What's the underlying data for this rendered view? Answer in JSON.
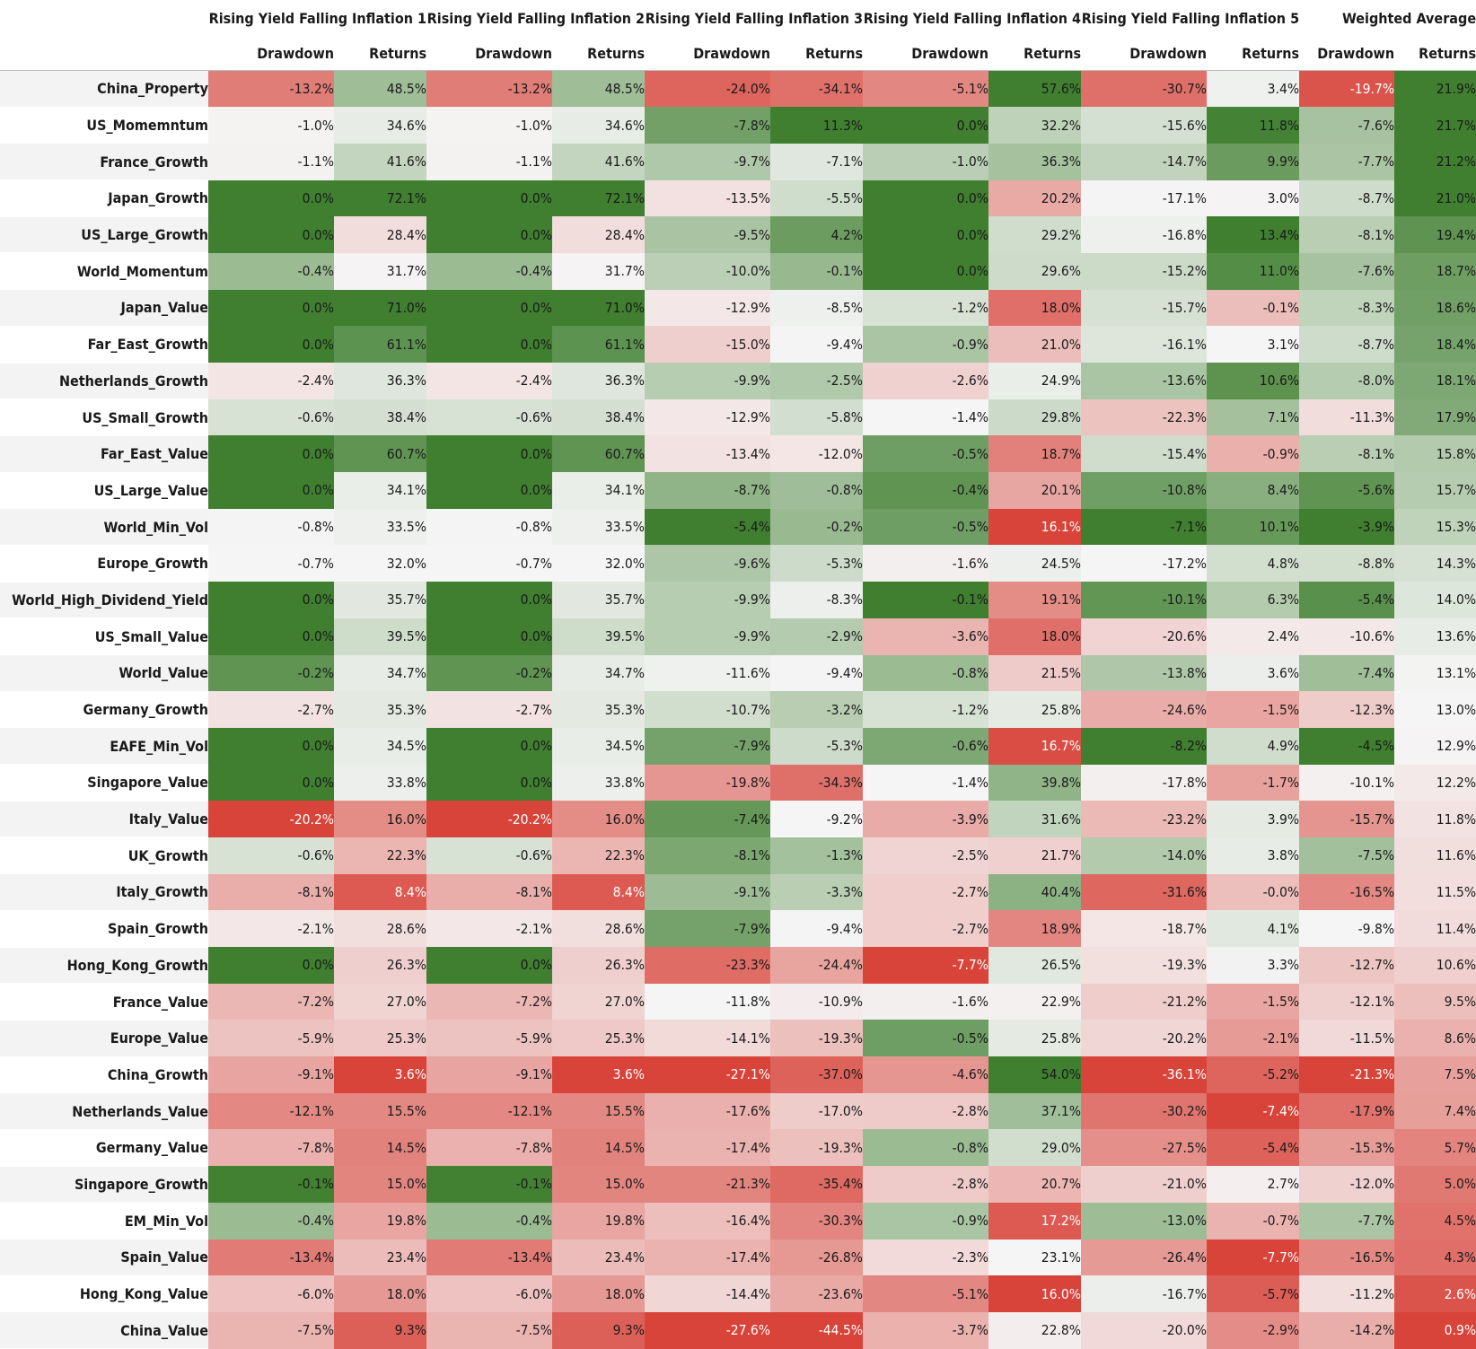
{
  "chart_data": {
    "type": "heatmap",
    "group_headers": [
      "Rising Yield Falling Inflation 1",
      "Rising Yield Falling Inflation 2",
      "Rising Yield Falling Inflation 3",
      "Rising Yield Falling Inflation 4",
      "Rising Yield Falling Inflation 5",
      "Weighted Average"
    ],
    "sub_headers": [
      "Drawdown",
      "Returns"
    ],
    "color_scale": {
      "low": "#d8433a",
      "mid": "#f5f5f5",
      "high": "#3f7f2f"
    },
    "rows": [
      {
        "label": "China_Property",
        "values": [
          "-13.2%",
          "48.5%",
          "-13.2%",
          "48.5%",
          "-24.0%",
          "-34.1%",
          "-5.1%",
          "57.6%",
          "-30.7%",
          "3.4%",
          "-19.7%",
          "21.9%"
        ]
      },
      {
        "label": "US_Momemntum",
        "values": [
          "-1.0%",
          "34.6%",
          "-1.0%",
          "34.6%",
          "-7.8%",
          "11.3%",
          "0.0%",
          "32.2%",
          "-15.6%",
          "11.8%",
          "-7.6%",
          "21.7%"
        ]
      },
      {
        "label": "France_Growth",
        "values": [
          "-1.1%",
          "41.6%",
          "-1.1%",
          "41.6%",
          "-9.7%",
          "-7.1%",
          "-1.0%",
          "36.3%",
          "-14.7%",
          "9.9%",
          "-7.7%",
          "21.2%"
        ]
      },
      {
        "label": "Japan_Growth",
        "values": [
          "0.0%",
          "72.1%",
          "0.0%",
          "72.1%",
          "-13.5%",
          "-5.5%",
          "0.0%",
          "20.2%",
          "-17.1%",
          "3.0%",
          "-8.7%",
          "21.0%"
        ]
      },
      {
        "label": "US_Large_Growth",
        "values": [
          "0.0%",
          "28.4%",
          "0.0%",
          "28.4%",
          "-9.5%",
          "4.2%",
          "0.0%",
          "29.2%",
          "-16.8%",
          "13.4%",
          "-8.1%",
          "19.4%"
        ]
      },
      {
        "label": "World_Momentum",
        "values": [
          "-0.4%",
          "31.7%",
          "-0.4%",
          "31.7%",
          "-10.0%",
          "-0.1%",
          "0.0%",
          "29.6%",
          "-15.2%",
          "11.0%",
          "-7.6%",
          "18.7%"
        ]
      },
      {
        "label": "Japan_Value",
        "values": [
          "0.0%",
          "71.0%",
          "0.0%",
          "71.0%",
          "-12.9%",
          "-8.5%",
          "-1.2%",
          "18.0%",
          "-15.7%",
          "-0.1%",
          "-8.3%",
          "18.6%"
        ]
      },
      {
        "label": "Far_East_Growth",
        "values": [
          "0.0%",
          "61.1%",
          "0.0%",
          "61.1%",
          "-15.0%",
          "-9.4%",
          "-0.9%",
          "21.0%",
          "-16.1%",
          "3.1%",
          "-8.7%",
          "18.4%"
        ]
      },
      {
        "label": "Netherlands_Growth",
        "values": [
          "-2.4%",
          "36.3%",
          "-2.4%",
          "36.3%",
          "-9.9%",
          "-2.5%",
          "-2.6%",
          "24.9%",
          "-13.6%",
          "10.6%",
          "-8.0%",
          "18.1%"
        ]
      },
      {
        "label": "US_Small_Growth",
        "values": [
          "-0.6%",
          "38.4%",
          "-0.6%",
          "38.4%",
          "-12.9%",
          "-5.8%",
          "-1.4%",
          "29.8%",
          "-22.3%",
          "7.1%",
          "-11.3%",
          "17.9%"
        ]
      },
      {
        "label": "Far_East_Value",
        "values": [
          "0.0%",
          "60.7%",
          "0.0%",
          "60.7%",
          "-13.4%",
          "-12.0%",
          "-0.5%",
          "18.7%",
          "-15.4%",
          "-0.9%",
          "-8.1%",
          "15.8%"
        ]
      },
      {
        "label": "US_Large_Value",
        "values": [
          "0.0%",
          "34.1%",
          "0.0%",
          "34.1%",
          "-8.7%",
          "-0.8%",
          "-0.4%",
          "20.1%",
          "-10.8%",
          "8.4%",
          "-5.6%",
          "15.7%"
        ]
      },
      {
        "label": "World_Min_Vol",
        "values": [
          "-0.8%",
          "33.5%",
          "-0.8%",
          "33.5%",
          "-5.4%",
          "-0.2%",
          "-0.5%",
          "16.1%",
          "-7.1%",
          "10.1%",
          "-3.9%",
          "15.3%"
        ]
      },
      {
        "label": "Europe_Growth",
        "values": [
          "-0.7%",
          "32.0%",
          "-0.7%",
          "32.0%",
          "-9.6%",
          "-5.3%",
          "-1.6%",
          "24.5%",
          "-17.2%",
          "4.8%",
          "-8.8%",
          "14.3%"
        ]
      },
      {
        "label": "World_High_Dividend_Yield",
        "values": [
          "0.0%",
          "35.7%",
          "0.0%",
          "35.7%",
          "-9.9%",
          "-8.3%",
          "-0.1%",
          "19.1%",
          "-10.1%",
          "6.3%",
          "-5.4%",
          "14.0%"
        ]
      },
      {
        "label": "US_Small_Value",
        "values": [
          "0.0%",
          "39.5%",
          "0.0%",
          "39.5%",
          "-9.9%",
          "-2.9%",
          "-3.6%",
          "18.0%",
          "-20.6%",
          "2.4%",
          "-10.6%",
          "13.6%"
        ]
      },
      {
        "label": "World_Value",
        "values": [
          "-0.2%",
          "34.7%",
          "-0.2%",
          "34.7%",
          "-11.6%",
          "-9.4%",
          "-0.8%",
          "21.5%",
          "-13.8%",
          "3.6%",
          "-7.4%",
          "13.1%"
        ]
      },
      {
        "label": "Germany_Growth",
        "values": [
          "-2.7%",
          "35.3%",
          "-2.7%",
          "35.3%",
          "-10.7%",
          "-3.2%",
          "-1.2%",
          "25.8%",
          "-24.6%",
          "-1.5%",
          "-12.3%",
          "13.0%"
        ]
      },
      {
        "label": "EAFE_Min_Vol",
        "values": [
          "0.0%",
          "34.5%",
          "0.0%",
          "34.5%",
          "-7.9%",
          "-5.3%",
          "-0.6%",
          "16.7%",
          "-8.2%",
          "4.9%",
          "-4.5%",
          "12.9%"
        ]
      },
      {
        "label": "Singapore_Value",
        "values": [
          "0.0%",
          "33.8%",
          "0.0%",
          "33.8%",
          "-19.8%",
          "-34.3%",
          "-1.4%",
          "39.8%",
          "-17.8%",
          "-1.7%",
          "-10.1%",
          "12.2%"
        ]
      },
      {
        "label": "Italy_Value",
        "values": [
          "-20.2%",
          "16.0%",
          "-20.2%",
          "16.0%",
          "-7.4%",
          "-9.2%",
          "-3.9%",
          "31.6%",
          "-23.2%",
          "3.9%",
          "-15.7%",
          "11.8%"
        ]
      },
      {
        "label": "UK_Growth",
        "values": [
          "-0.6%",
          "22.3%",
          "-0.6%",
          "22.3%",
          "-8.1%",
          "-1.3%",
          "-2.5%",
          "21.7%",
          "-14.0%",
          "3.8%",
          "-7.5%",
          "11.6%"
        ]
      },
      {
        "label": "Italy_Growth",
        "values": [
          "-8.1%",
          "8.4%",
          "-8.1%",
          "8.4%",
          "-9.1%",
          "-3.3%",
          "-2.7%",
          "40.4%",
          "-31.6%",
          "-0.0%",
          "-16.5%",
          "11.5%"
        ]
      },
      {
        "label": "Spain_Growth",
        "values": [
          "-2.1%",
          "28.6%",
          "-2.1%",
          "28.6%",
          "-7.9%",
          "-9.4%",
          "-2.7%",
          "18.9%",
          "-18.7%",
          "4.1%",
          "-9.8%",
          "11.4%"
        ]
      },
      {
        "label": "Hong_Kong_Growth",
        "values": [
          "0.0%",
          "26.3%",
          "0.0%",
          "26.3%",
          "-23.3%",
          "-24.4%",
          "-7.7%",
          "26.5%",
          "-19.3%",
          "3.3%",
          "-12.7%",
          "10.6%"
        ]
      },
      {
        "label": "France_Value",
        "values": [
          "-7.2%",
          "27.0%",
          "-7.2%",
          "27.0%",
          "-11.8%",
          "-10.9%",
          "-1.6%",
          "22.9%",
          "-21.2%",
          "-1.5%",
          "-12.1%",
          "9.5%"
        ]
      },
      {
        "label": "Europe_Value",
        "values": [
          "-5.9%",
          "25.3%",
          "-5.9%",
          "25.3%",
          "-14.1%",
          "-19.3%",
          "-0.5%",
          "25.8%",
          "-20.2%",
          "-2.1%",
          "-11.5%",
          "8.6%"
        ]
      },
      {
        "label": "China_Growth",
        "values": [
          "-9.1%",
          "3.6%",
          "-9.1%",
          "3.6%",
          "-27.1%",
          "-37.0%",
          "-4.6%",
          "54.0%",
          "-36.1%",
          "-5.2%",
          "-21.3%",
          "7.5%"
        ]
      },
      {
        "label": "Netherlands_Value",
        "values": [
          "-12.1%",
          "15.5%",
          "-12.1%",
          "15.5%",
          "-17.6%",
          "-17.0%",
          "-2.8%",
          "37.1%",
          "-30.2%",
          "-7.4%",
          "-17.9%",
          "7.4%"
        ]
      },
      {
        "label": "Germany_Value",
        "values": [
          "-7.8%",
          "14.5%",
          "-7.8%",
          "14.5%",
          "-17.4%",
          "-19.3%",
          "-0.8%",
          "29.0%",
          "-27.5%",
          "-5.4%",
          "-15.3%",
          "5.7%"
        ]
      },
      {
        "label": "Singapore_Growth",
        "values": [
          "-0.1%",
          "15.0%",
          "-0.1%",
          "15.0%",
          "-21.3%",
          "-35.4%",
          "-2.8%",
          "20.7%",
          "-21.0%",
          "2.7%",
          "-12.0%",
          "5.0%"
        ]
      },
      {
        "label": "EM_Min_Vol",
        "values": [
          "-0.4%",
          "19.8%",
          "-0.4%",
          "19.8%",
          "-16.4%",
          "-30.3%",
          "-0.9%",
          "17.2%",
          "-13.0%",
          "-0.7%",
          "-7.7%",
          "4.5%"
        ]
      },
      {
        "label": "Spain_Value",
        "values": [
          "-13.4%",
          "23.4%",
          "-13.4%",
          "23.4%",
          "-17.4%",
          "-26.8%",
          "-2.3%",
          "23.1%",
          "-26.4%",
          "-7.7%",
          "-16.5%",
          "4.3%"
        ]
      },
      {
        "label": "Hong_Kong_Value",
        "values": [
          "-6.0%",
          "18.0%",
          "-6.0%",
          "18.0%",
          "-14.4%",
          "-23.6%",
          "-5.1%",
          "16.0%",
          "-16.7%",
          "-5.7%",
          "-11.2%",
          "2.6%"
        ]
      },
      {
        "label": "China_Value",
        "values": [
          "-7.5%",
          "9.3%",
          "-7.5%",
          "9.3%",
          "-27.6%",
          "-44.5%",
          "-3.7%",
          "22.8%",
          "-20.0%",
          "-2.9%",
          "-14.2%",
          "0.9%"
        ]
      }
    ]
  }
}
